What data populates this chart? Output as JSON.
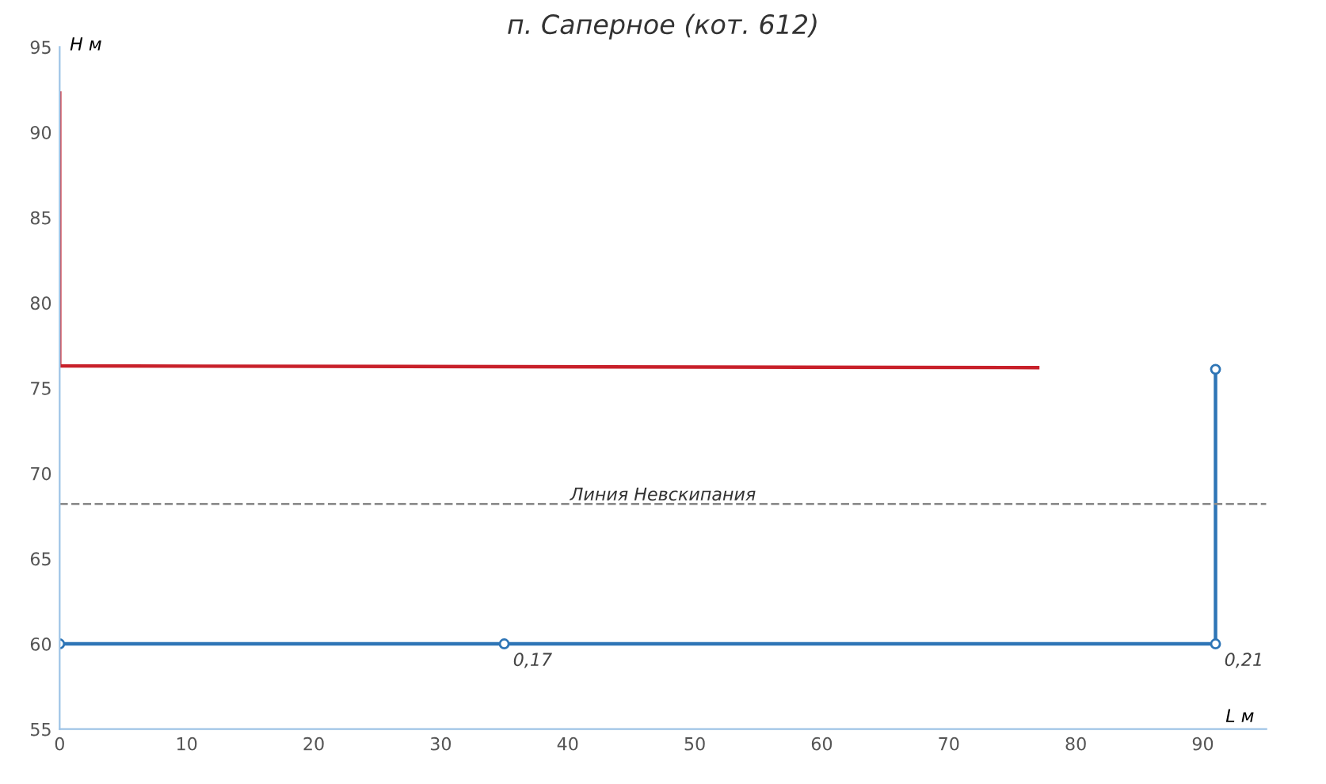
{
  "chart_data": {
    "type": "line",
    "title": "п. Саперное (кот. 612)",
    "xlabel": "L м",
    "ylabel": "Н м",
    "series": [
      {
        "color": "#c8202a",
        "x": [
          0,
          0,
          77
        ],
        "values": [
          92.3,
          76.3,
          76.2
        ],
        "marker": "none"
      },
      {
        "color": "#2e75b6",
        "x": [
          0,
          35,
          91,
          91
        ],
        "values": [
          60,
          60,
          60,
          76.1
        ],
        "marker": "circle"
      }
    ],
    "ref_lines": [
      {
        "axis": "y",
        "value": 68.2,
        "label": "Линия Невскипания",
        "color": "#8c8c8c",
        "line_style": "dashed"
      }
    ],
    "annotations": [
      {
        "text": "0,17",
        "x": 35,
        "y": 60
      },
      {
        "text": "0,21",
        "x": 91,
        "y": 60
      }
    ],
    "xlim": [
      0,
      95
    ],
    "xticks": [
      0,
      10,
      20,
      30,
      40,
      50,
      60,
      70,
      80,
      90
    ],
    "ylim": [
      55,
      95
    ],
    "yticks": [
      55,
      60,
      65,
      70,
      75,
      80,
      85,
      90,
      95
    ],
    "grid": false,
    "line_style": "solid"
  }
}
